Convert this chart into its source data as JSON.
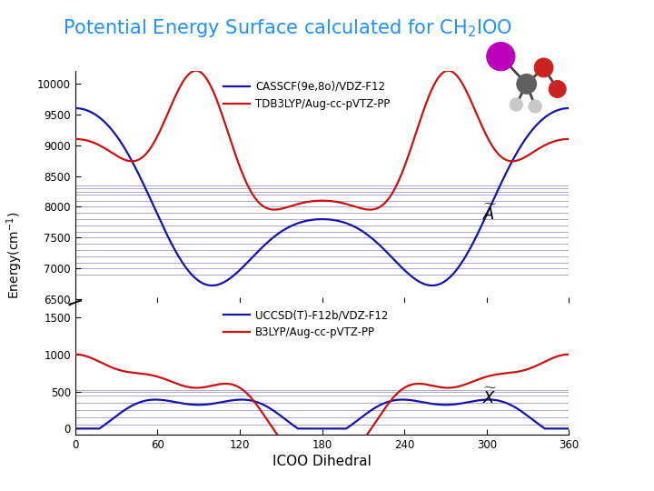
{
  "title_color": "#1e90ff",
  "xlabel": "ICOO Dihedral",
  "ylabel": "Energy(cm⁻¹)",
  "background_color": "#ffffff",
  "upper_blue_label": "CASSCF(9e,8o)/VDZ-F12",
  "upper_red_label": "TDB3LYP/Aug-cc-pVTZ-PP",
  "lower_blue_label": "UCCSD(T)-F12b/VDZ-F12",
  "lower_red_label": "B3LYP/Aug-cc-pVTZ-PP",
  "blue_color": "#1414aa",
  "red_color": "#cc1111",
  "upper_yticks": [
    6500,
    7000,
    7500,
    8000,
    8500,
    9000,
    9500,
    10000
  ],
  "lower_yticks": [
    0,
    500,
    1000,
    1500
  ],
  "xticks": [
    0,
    60,
    120,
    180,
    240,
    300,
    360
  ],
  "upper_ylim": [
    6450,
    10200
  ],
  "lower_ylim": [
    -80,
    1700
  ],
  "hline_upper_energies": [
    6900,
    7000,
    7100,
    7200,
    7300,
    7400,
    7500,
    7600,
    7700,
    7800,
    7900,
    8000,
    8100,
    8200,
    8250,
    8300,
    8350
  ],
  "hline_lower_energies": [
    50,
    150,
    250,
    350,
    450,
    500,
    520
  ]
}
